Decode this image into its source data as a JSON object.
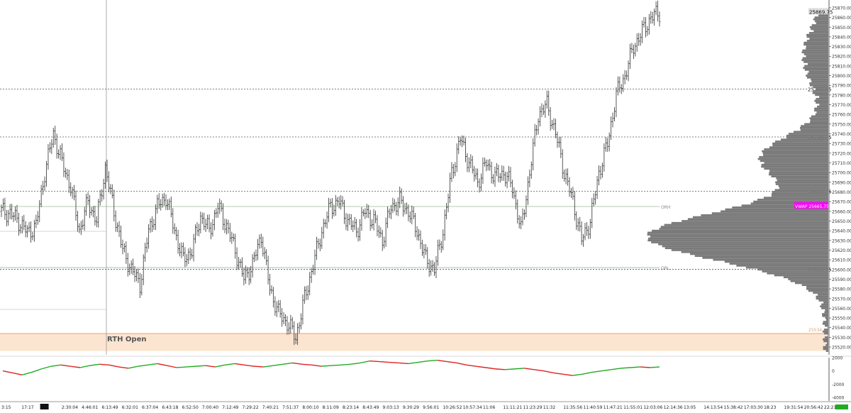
{
  "chart_data": [
    {
      "type": "ohlc",
      "title": "",
      "ylim": [
        25512,
        25878
      ],
      "y_ticks": [
        25870,
        25860,
        25850,
        25840,
        25830,
        25820,
        25810,
        25800,
        25790,
        25780,
        25770,
        25760,
        25750,
        25740,
        25730,
        25720,
        25710,
        25700,
        25690,
        25680,
        25670,
        25660,
        25650,
        25640,
        25630,
        25620,
        25610,
        25600,
        25590,
        25580,
        25570,
        25560,
        25550,
        25540,
        25530,
        25520
      ],
      "x_ticks": [
        "3:15",
        "17:17",
        "",
        "2:30:04",
        "4:46:01",
        "6:13:49",
        "6:32:01",
        "6:37:04",
        "6:43:18",
        "6:52:50",
        "7:00:40",
        "7:12:49",
        "7:29:22",
        "7:40:21",
        "7:51:37",
        "8:00:10",
        "8:11:09",
        "8:23:14",
        "8:43:49",
        "9:03:13",
        "9:30:29",
        "9:56:01",
        "10:26:52",
        "10:57:34",
        "11:06",
        "11:11:21",
        "11:23:29",
        "11:32",
        "11:35:56",
        "11:40:59",
        "11:47:21",
        "11:55:01",
        "12:03:06",
        "12:14:36",
        "13:05",
        "14:13:54",
        "15:38:42",
        "17:03:30",
        "18:23",
        "19:31:54",
        "20:56:42",
        "22:21:30"
      ],
      "price_path": [
        25660,
        25658,
        25650,
        25638,
        25645,
        25700,
        25740,
        25710,
        25685,
        25640,
        25670,
        25650,
        25705,
        25660,
        25620,
        25600,
        25585,
        25640,
        25665,
        25675,
        25640,
        25610,
        25620,
        25655,
        25640,
        25665,
        25645,
        25620,
        25590,
        25605,
        25635,
        25580,
        25555,
        25545,
        25530,
        25570,
        25605,
        25640,
        25665,
        25670,
        25650,
        25640,
        25660,
        25650,
        25630,
        25665,
        25670,
        25660,
        25640,
        25610,
        25600,
        25640,
        25700,
        25735,
        25710,
        25690,
        25710,
        25695,
        25700,
        25685,
        25640,
        25700,
        25760,
        25770,
        25740,
        25700,
        25670,
        25630,
        25650,
        25700,
        25730,
        25780,
        25800,
        25830,
        25845,
        25860,
        25865
      ],
      "levels": [
        {
          "label": "25786.25",
          "value": 25786.25
        },
        {
          "label": "25736.75",
          "value": 25736.75
        },
        {
          "label": "25680.75",
          "value": 25680.75
        },
        {
          "label": "25600.25",
          "value": 25600.25
        }
      ],
      "or_lines": [
        {
          "label": "ORH",
          "value": 25665
        },
        {
          "label": "ORL",
          "value": 25602
        }
      ],
      "current_price_label": "25869.75",
      "vwap": {
        "label": "VWAP",
        "value_label": "25665.75",
        "value": 25665.75
      },
      "zone": {
        "label": "RTH Open",
        "tag": "25534",
        "low": 25516,
        "high": 25534
      },
      "session_open_label": "RTH Open"
    },
    {
      "type": "line",
      "title": "",
      "ylim": [
        -4000,
        2000
      ],
      "y_ticks": [
        2000,
        0,
        -2000,
        -4000
      ],
      "values": [
        0,
        -300,
        -600,
        -200,
        300,
        700,
        900,
        700,
        500,
        800,
        1000,
        900,
        600,
        400,
        700,
        900,
        1100,
        800,
        500,
        600,
        700,
        800,
        600,
        900,
        1100,
        900,
        700,
        600,
        800,
        1000,
        1200,
        1000,
        900,
        700,
        800,
        900,
        1000,
        1200,
        1500,
        1400,
        1300,
        1200,
        1100,
        1300,
        1500,
        1600,
        1400,
        1200,
        900,
        700,
        500,
        300,
        200,
        300,
        400,
        200,
        0,
        -300,
        -500,
        -700,
        -500,
        -200,
        0,
        200,
        400,
        500,
        600,
        500,
        600
      ]
    }
  ],
  "colors": {
    "bar": "#444444",
    "grid": "#d9d9d9",
    "level": "#555555",
    "vwap_bg": "#ff00ff",
    "zone": "#fbe5d1",
    "zone_line": "#f0a060",
    "profile": "#7a7a7a",
    "status": "#22aa22"
  }
}
